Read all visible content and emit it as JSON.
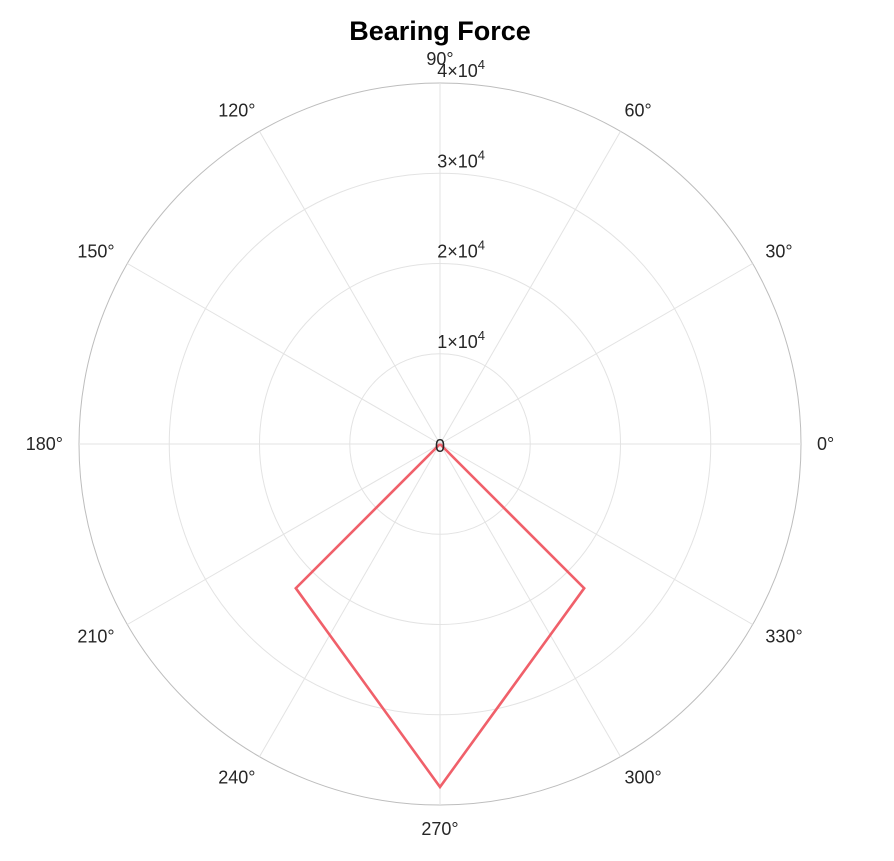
{
  "chart_data": {
    "type": "line",
    "subtype": "polar",
    "title": "Bearing Force",
    "theta_unit": "degrees",
    "theta_ticks": [
      0,
      30,
      60,
      90,
      120,
      150,
      180,
      210,
      240,
      270,
      300,
      330
    ],
    "theta_tick_labels": [
      "0°",
      "30°",
      "60°",
      "90°",
      "120°",
      "150°",
      "180°",
      "210°",
      "240°",
      "270°",
      "300°",
      "330°"
    ],
    "r_ticks": [
      0,
      10000,
      20000,
      30000,
      40000
    ],
    "r_tick_labels": [
      {
        "text": "0"
      },
      {
        "mantissa": "1",
        "base": "10",
        "exponent": "4"
      },
      {
        "mantissa": "2",
        "base": "10",
        "exponent": "4"
      },
      {
        "mantissa": "3",
        "base": "10",
        "exponent": "4"
      },
      {
        "mantissa": "4",
        "base": "10",
        "exponent": "4"
      }
    ],
    "rlim": [
      0,
      40000
    ],
    "grid": true,
    "series": [
      {
        "color": "#f0606a",
        "theta": [
          0,
          225,
          270,
          315,
          0
        ],
        "r": [
          0,
          22600,
          38000,
          22600,
          0
        ]
      }
    ]
  },
  "colors": {
    "grid": "#e3e3e3",
    "outer_ring": "#bdbdbd"
  }
}
